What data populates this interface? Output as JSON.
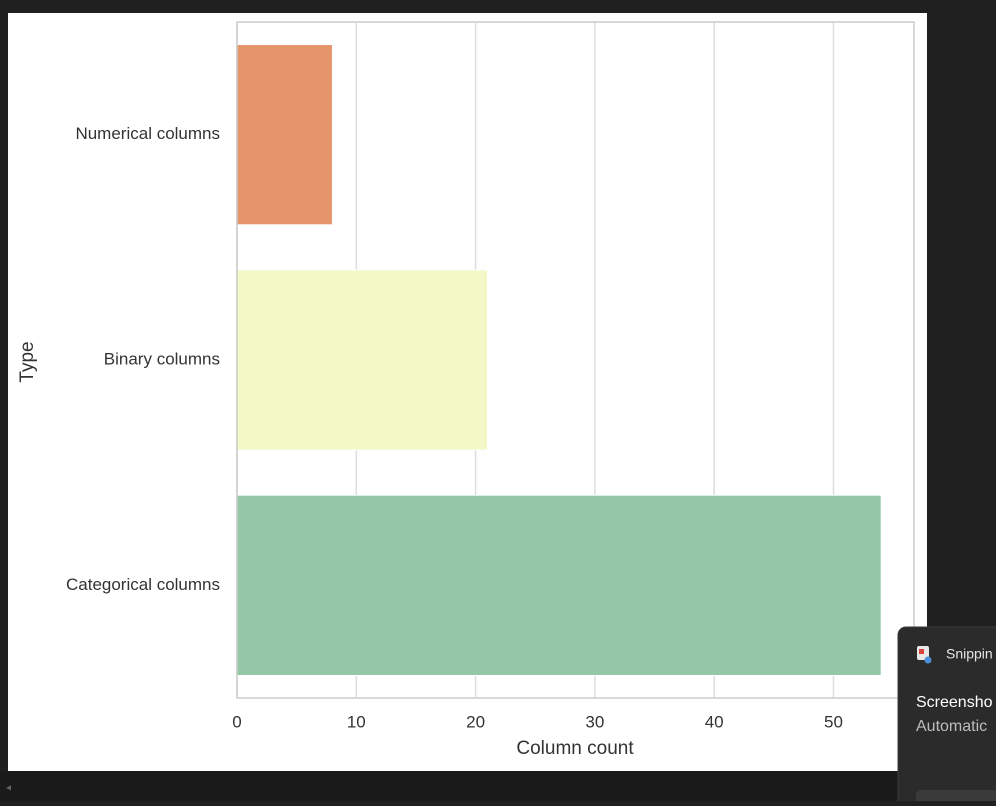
{
  "chart_data": {
    "type": "bar",
    "orientation": "horizontal",
    "categories": [
      "Numerical columns",
      "Binary columns",
      "Categorical columns"
    ],
    "values": [
      8,
      21,
      54
    ],
    "colors": [
      "#e6956a",
      "#f4f7c6",
      "#93c7a7"
    ],
    "xlim": [
      0,
      56.75
    ],
    "xticks": [
      0,
      10,
      20,
      30,
      40,
      50
    ],
    "xlabel": "Column count",
    "ylabel": "Type",
    "grid": true
  },
  "notification": {
    "app": "Snippin",
    "title": "Screensho",
    "body": "Automatic"
  }
}
